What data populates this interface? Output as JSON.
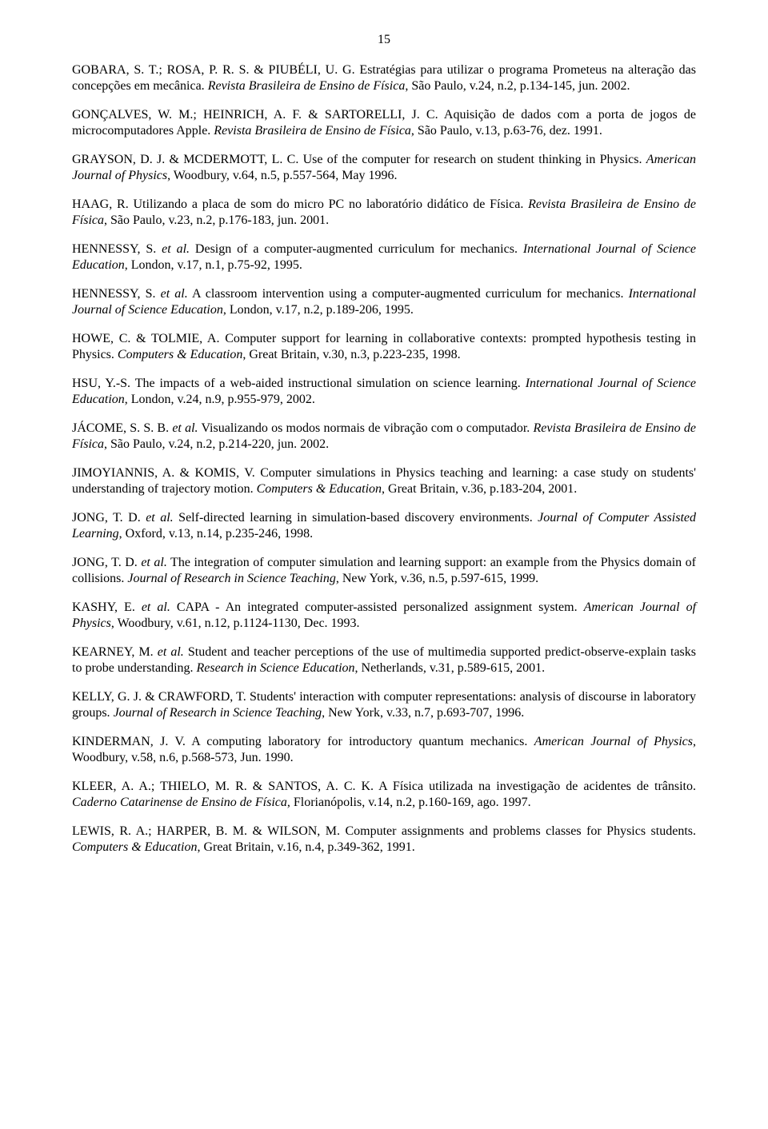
{
  "page_number": "15",
  "references": [
    {
      "segments": [
        {
          "t": "GOBARA, S. T.; ROSA, P. R. S. & PIUBÉLI, U. G. Estratégias para utilizar o programa Prometeus na alteração das concepções em mecânica. ",
          "i": false
        },
        {
          "t": "Revista Brasileira de Ensino de Física",
          "i": true
        },
        {
          "t": ", São Paulo, v.24, n.2, p.134-145, jun. 2002.",
          "i": false
        }
      ]
    },
    {
      "segments": [
        {
          "t": "GONÇALVES, W. M.; HEINRICH, A. F. & SARTORELLI, J. C. Aquisição de dados com a porta de jogos de microcomputadores Apple. ",
          "i": false
        },
        {
          "t": "Revista Brasileira de Ensino de Física",
          "i": true
        },
        {
          "t": ", São Paulo, v.13, p.63-76, dez. 1991.",
          "i": false
        }
      ]
    },
    {
      "segments": [
        {
          "t": "GRAYSON, D. J. & MCDERMOTT, L. C. Use of the computer for research on student thinking in Physics. ",
          "i": false
        },
        {
          "t": "American Journal of Physics",
          "i": true
        },
        {
          "t": ", Woodbury, v.64, n.5, p.557-564, May 1996.",
          "i": false
        }
      ]
    },
    {
      "segments": [
        {
          "t": "HAAG, R. Utilizando a placa de som do micro PC no laboratório didático de Física. ",
          "i": false
        },
        {
          "t": "Revista Brasileira de Ensino de Física",
          "i": true
        },
        {
          "t": ", São Paulo, v.23, n.2, p.176-183, jun. 2001.",
          "i": false
        }
      ]
    },
    {
      "segments": [
        {
          "t": "HENNESSY, S. ",
          "i": false
        },
        {
          "t": "et al.",
          "i": true
        },
        {
          "t": " Design of a computer-augmented curriculum for mechanics. ",
          "i": false
        },
        {
          "t": "International Journal of Science Education",
          "i": true
        },
        {
          "t": ", London, v.17, n.1, p.75-92, 1995.",
          "i": false
        }
      ]
    },
    {
      "segments": [
        {
          "t": "HENNESSY, S. ",
          "i": false
        },
        {
          "t": "et al.",
          "i": true
        },
        {
          "t": " A classroom intervention using a computer-augmented curriculum for mechanics. ",
          "i": false
        },
        {
          "t": "International Journal of Science Education",
          "i": true
        },
        {
          "t": ", London, v.17, n.2, p.189-206, 1995.",
          "i": false
        }
      ]
    },
    {
      "segments": [
        {
          "t": "HOWE, C. & TOLMIE, A. Computer support for learning in collaborative contexts: prompted hypothesis testing in Physics. ",
          "i": false
        },
        {
          "t": "Computers & Education",
          "i": true
        },
        {
          "t": ", Great Britain, v.30, n.3, p.223-235, 1998.",
          "i": false
        }
      ]
    },
    {
      "segments": [
        {
          "t": "HSU, Y.-S. The impacts of a web-aided instructional simulation on science learning. ",
          "i": false
        },
        {
          "t": "International Journal of Science Education",
          "i": true
        },
        {
          "t": ", London, v.24, n.9, p.955-979, 2002.",
          "i": false
        }
      ]
    },
    {
      "segments": [
        {
          "t": "JÁCOME, S. S. B. ",
          "i": false
        },
        {
          "t": "et al.",
          "i": true
        },
        {
          "t": " Visualizando os modos normais de vibração com o computador. ",
          "i": false
        },
        {
          "t": "Revista Brasileira de Ensino de Física",
          "i": true
        },
        {
          "t": ", São Paulo, v.24, n.2, p.214-220, jun. 2002.",
          "i": false
        }
      ]
    },
    {
      "segments": [
        {
          "t": "JIMOYIANNIS, A. & KOMIS, V. Computer simulations in Physics teaching and learning: a case study on students' understanding of trajectory motion. ",
          "i": false
        },
        {
          "t": "Computers & Education",
          "i": true
        },
        {
          "t": ", Great Britain, v.36, p.183-204, 2001.",
          "i": false
        }
      ]
    },
    {
      "segments": [
        {
          "t": "JONG, T. D. ",
          "i": false
        },
        {
          "t": "et al.",
          "i": true
        },
        {
          "t": " Self-directed learning in simulation-based discovery environments. ",
          "i": false
        },
        {
          "t": "Journal of Computer Assisted Learning",
          "i": true
        },
        {
          "t": ", Oxford, v.13, n.14, p.235-246, 1998.",
          "i": false
        }
      ]
    },
    {
      "segments": [
        {
          "t": "JONG, T. D. ",
          "i": false
        },
        {
          "t": "et al.",
          "i": true
        },
        {
          "t": " The integration of computer simulation and learning support: an example from the Physics domain of collisions. ",
          "i": false
        },
        {
          "t": "Journal of Research in Science Teaching",
          "i": true
        },
        {
          "t": ", New York, v.36, n.5, p.597-615, 1999.",
          "i": false
        }
      ]
    },
    {
      "segments": [
        {
          "t": "KASHY, E. ",
          "i": false
        },
        {
          "t": "et al.",
          "i": true
        },
        {
          "t": " CAPA - An integrated computer-assisted personalized assignment system. ",
          "i": false
        },
        {
          "t": "American Journal of Physics",
          "i": true
        },
        {
          "t": ", Woodbury, v.61, n.12, p.1124-1130, Dec. 1993.",
          "i": false
        }
      ]
    },
    {
      "segments": [
        {
          "t": "KEARNEY, M. ",
          "i": false
        },
        {
          "t": "et al.",
          "i": true
        },
        {
          "t": " Student and teacher perceptions of the use of multimedia supported predict-observe-explain tasks to probe understanding. ",
          "i": false
        },
        {
          "t": "Research in Science Education",
          "i": true
        },
        {
          "t": ", Netherlands, v.31, p.589-615, 2001.",
          "i": false
        }
      ]
    },
    {
      "segments": [
        {
          "t": "KELLY, G. J. & CRAWFORD, T. Students' interaction with computer representations: analysis of discourse in laboratory groups. ",
          "i": false
        },
        {
          "t": "Journal of Research in Science Teaching",
          "i": true
        },
        {
          "t": ", New York, v.33, n.7, p.693-707, 1996.",
          "i": false
        }
      ]
    },
    {
      "segments": [
        {
          "t": "KINDERMAN, J. V. A computing laboratory for introductory quantum mechanics. ",
          "i": false
        },
        {
          "t": "American Journal of Physics",
          "i": true
        },
        {
          "t": ", Woodbury, v.58, n.6, p.568-573, Jun. 1990.",
          "i": false
        }
      ]
    },
    {
      "segments": [
        {
          "t": "KLEER, A. A.; THIELO, M. R. & SANTOS, A. C. K. A Física utilizada na investigação de acidentes de trânsito. ",
          "i": false
        },
        {
          "t": "Caderno Catarinense de Ensino de Física",
          "i": true
        },
        {
          "t": ", Florianópolis, v.14, n.2, p.160-169, ago. 1997.",
          "i": false
        }
      ]
    },
    {
      "segments": [
        {
          "t": "LEWIS, R. A.; HARPER, B. M. & WILSON, M. Computer assignments and problems classes for Physics students. ",
          "i": false
        },
        {
          "t": "Computers & Education",
          "i": true
        },
        {
          "t": ", Great Britain, v.16, n.4, p.349-362, 1991.",
          "i": false
        }
      ]
    }
  ]
}
